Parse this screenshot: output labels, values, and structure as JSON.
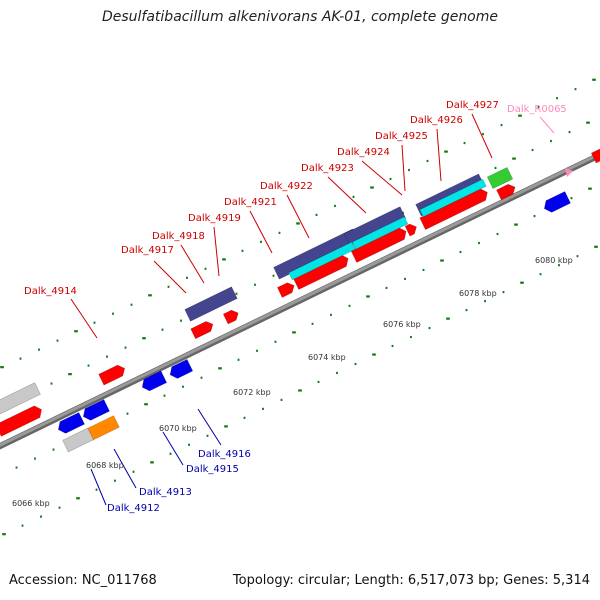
{
  "title": "Desulfatibacillum alkenivorans AK-01, complete genome",
  "footer": {
    "accession": "Accession: NC_011768",
    "summary": "Topology: circular; Length: 6,517,073 bp; Genes: 5,314"
  },
  "colors": {
    "forward_label": "#cc0000",
    "reverse_label": "#0000aa",
    "rna_label": "#ff88bb",
    "cds_forward": "#ff0000",
    "cds_reverse": "#0000ee",
    "rna": "#ff88bb",
    "cog_purple": "#44448f",
    "cog_cyan": "#00e5e5",
    "cog_green": "#33cc33",
    "cog_orange": "#ff8800",
    "cog_gray": "#c8c8c8",
    "backbone": "#888888",
    "tick": "#117711"
  },
  "scale_labels": [
    "6066 kbp",
    "6068 kbp",
    "6070 kbp",
    "6072 kbp",
    "6074 kbp",
    "6076 kbp",
    "6078 kbp",
    "6080 kbp"
  ],
  "forward_gene_labels": [
    "Dalk_4914",
    "Dalk_4917",
    "Dalk_4918",
    "Dalk_4919",
    "Dalk_4921",
    "Dalk_4922",
    "Dalk_4923",
    "Dalk_4924",
    "Dalk_4925",
    "Dalk_4926",
    "Dalk_4927"
  ],
  "rna_gene_labels": [
    "Dalk_R0065"
  ],
  "reverse_gene_labels": [
    "Dalk_4912",
    "Dalk_4913",
    "Dalk_4915",
    "Dalk_4916"
  ]
}
